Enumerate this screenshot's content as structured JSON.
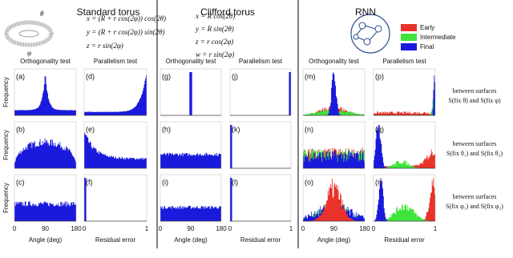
{
  "columns": [
    {
      "title": "Standard torus",
      "equations": [
        "x = (R + r cos(2φ)) cos(2θ)",
        "y = (R + r cos(2φ)) sin(2θ)",
        "z = r sin(2φ)"
      ],
      "panels": [
        [
          "(a)",
          "(d)"
        ],
        [
          "(b)",
          "(e)"
        ],
        [
          "(c)",
          "(f)"
        ]
      ]
    },
    {
      "title": "Clifford torus",
      "equations": [
        "x = R cos(2θ)",
        "y = R sin(2θ)",
        "z = r cos(2φ)",
        "w = r sin(2φ)"
      ],
      "panels": [
        [
          "(g)",
          "(j)"
        ],
        [
          "(h)",
          "(k)"
        ],
        [
          "(i)",
          "(l)"
        ]
      ]
    },
    {
      "title": "RNN",
      "legend": [
        {
          "name": "Early",
          "color": "#e8322a"
        },
        {
          "name": "Intermediate",
          "color": "#3ee43a"
        },
        {
          "name": "Final",
          "color": "#1a1adc"
        }
      ],
      "panels": [
        [
          "(m)",
          "(p)"
        ],
        [
          "(n)",
          "(q)"
        ],
        [
          "(o)",
          "(r)"
        ]
      ]
    }
  ],
  "torus_labels": [
    "θ",
    "φ"
  ],
  "panel_headers": [
    "Orthogonality test",
    "Parallelism test"
  ],
  "y_label": "Frequency",
  "x_labels": [
    "Angle (deg)",
    "Residual error"
  ],
  "angle_ticks": [
    "0",
    "90",
    "180"
  ],
  "residual_ticks": [
    "0",
    "1"
  ],
  "notes": [
    [
      "between surfaces",
      "S(fix θ) and S(fix φ)"
    ],
    [
      "between surfaces",
      "S(fix θ₁) and S(fix θ₂)"
    ],
    [
      "between surfaces",
      "S(fix φ₁) and S(fix φ₂)"
    ]
  ]
}
